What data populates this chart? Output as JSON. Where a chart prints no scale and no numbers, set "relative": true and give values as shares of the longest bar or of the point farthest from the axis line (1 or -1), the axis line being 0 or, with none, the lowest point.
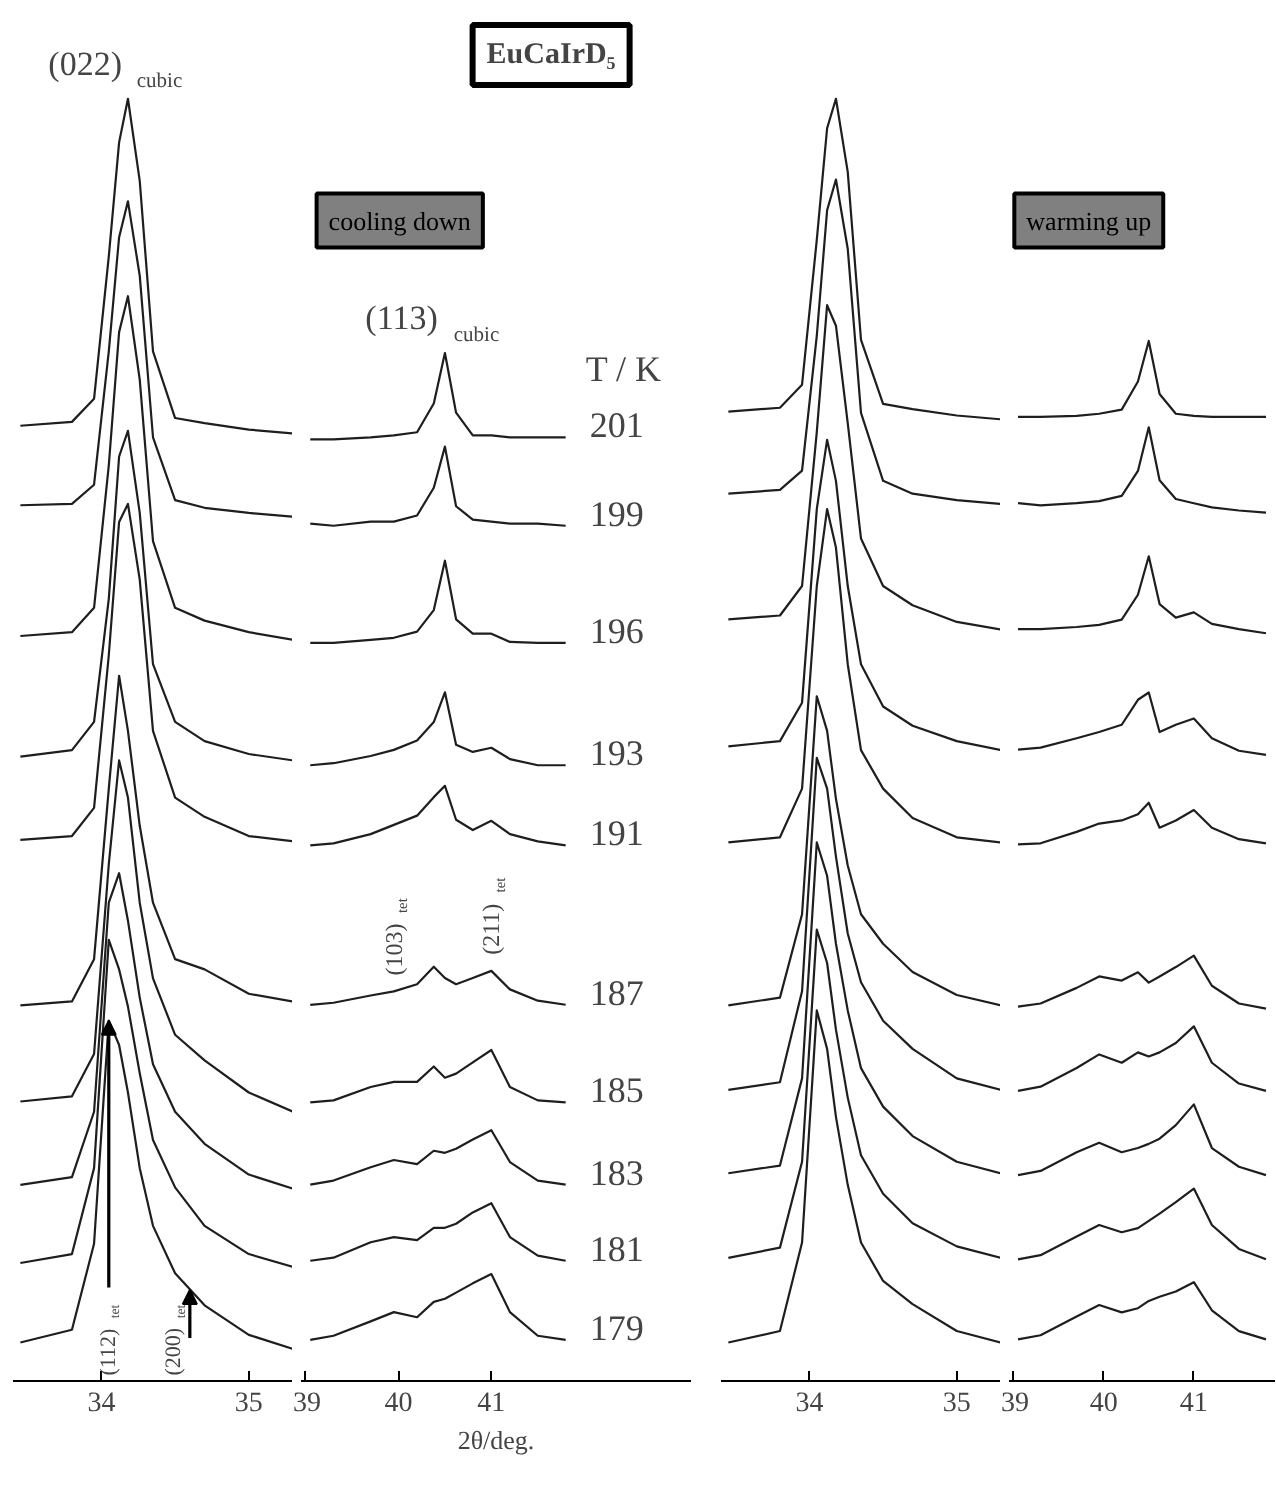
{
  "chart_data": [
    {
      "type": "line",
      "relative": true,
      "tick_labels": "x",
      "xlim": [
        33.4,
        35.3
      ],
      "xticks": [
        34,
        35
      ],
      "x": [
        33.45,
        33.8,
        33.95,
        34.05,
        34.12,
        34.18,
        34.26,
        34.35,
        34.5,
        34.7,
        35.0,
        35.3
      ],
      "annotations": [
        {
          "text": "(022)$_{cubic}$",
          "x": 34.18,
          "y": 1
        },
        {
          "text": "(112)$_{tet}$",
          "x": 34.05,
          "y": 0.281
        },
        {
          "text": "(200)$_{tet}$",
          "x": 34.6,
          "y": 0.071
        }
      ],
      "series": [
        {
          "color": "#1e1e1e",
          "values": [
            0.745,
            0.748,
            0.766,
            0.877,
            0.966,
            1,
            0.936,
            0.803,
            0.751,
            0.747,
            0.742,
            0.739
          ]
        },
        {
          "color": "#1e1e1e",
          "values": [
            0.683,
            0.684,
            0.699,
            0.803,
            0.892,
            0.92,
            0.862,
            0.736,
            0.687,
            0.681,
            0.677,
            0.674
          ]
        },
        {
          "color": "#1e1e1e",
          "values": [
            0.581,
            0.584,
            0.603,
            0.714,
            0.818,
            0.846,
            0.781,
            0.655,
            0.603,
            0.593,
            0.584,
            0.578
          ]
        },
        {
          "color": "#1e1e1e",
          "values": [
            0.487,
            0.492,
            0.514,
            0.61,
            0.721,
            0.741,
            0.677,
            0.559,
            0.514,
            0.499,
            0.489,
            0.484
          ]
        },
        {
          "color": "#1e1e1e",
          "values": [
            0.422,
            0.425,
            0.447,
            0.566,
            0.67,
            0.684,
            0.625,
            0.507,
            0.455,
            0.44,
            0.425,
            0.421
          ]
        },
        {
          "color": "#1e1e1e",
          "values": [
            0.293,
            0.296,
            0.329,
            0.462,
            0.55,
            0.507,
            0.433,
            0.373,
            0.329,
            0.321,
            0.302,
            0.296
          ]
        },
        {
          "color": "#1e1e1e",
          "values": [
            0.218,
            0.222,
            0.255,
            0.403,
            0.484,
            0.455,
            0.373,
            0.314,
            0.27,
            0.25,
            0.225,
            0.21
          ]
        },
        {
          "color": "#1e1e1e",
          "values": [
            0.153,
            0.159,
            0.21,
            0.373,
            0.396,
            0.359,
            0.299,
            0.247,
            0.21,
            0.185,
            0.161,
            0.15
          ]
        },
        {
          "color": "#1e1e1e",
          "values": [
            0.092,
            0.099,
            0.166,
            0.344,
            0.321,
            0.292,
            0.24,
            0.188,
            0.151,
            0.121,
            0.099,
            0.089
          ]
        },
        {
          "color": "#1e1e1e",
          "values": [
            0.03,
            0.04,
            0.107,
            0.281,
            0.262,
            0.225,
            0.166,
            0.121,
            0.084,
            0.059,
            0.036,
            0.025
          ]
        }
      ]
    },
    {
      "type": "line",
      "relative": true,
      "title": "EuCaIrD₅",
      "tick_labels": "x",
      "xlabel": "2θ/deg.",
      "legend_title": "T / K",
      "xlim": [
        38.95,
        43.15
      ],
      "xticks": [
        39,
        40,
        41
      ],
      "x": [
        39.05,
        39.3,
        39.7,
        39.95,
        40.2,
        40.38,
        40.5,
        40.62,
        40.8,
        41.0,
        41.2,
        41.5,
        41.8
      ],
      "annotations": [
        "cooling down",
        {
          "text": "(113)$_{cubic}$",
          "x": 40.5,
          "y": 1
        },
        {
          "text": "(103)$_{tet}$",
          "x": 39.95,
          "y": 0.379
        },
        {
          "text": "(211)$_{tet}$",
          "x": 41.0,
          "y": 0.399
        }
      ],
      "series": [
        {
          "name": "201",
          "color": "#1e1e1e",
          "values": [
            0.916,
            0.916,
            0.918,
            0.92,
            0.923,
            0.951,
            1,
            0.942,
            0.92,
            0.92,
            0.918,
            0.918,
            0.918
          ]
        },
        {
          "name": "199",
          "color": "#1e1e1e",
          "values": [
            0.834,
            0.832,
            0.836,
            0.836,
            0.842,
            0.869,
            0.909,
            0.851,
            0.838,
            0.836,
            0.834,
            0.834,
            0.832
          ]
        },
        {
          "name": "196",
          "color": "#1e1e1e",
          "values": [
            0.718,
            0.718,
            0.721,
            0.723,
            0.729,
            0.75,
            0.798,
            0.741,
            0.727,
            0.727,
            0.719,
            0.718,
            0.718
          ]
        },
        {
          "name": "193",
          "color": "#1e1e1e",
          "values": [
            0.599,
            0.601,
            0.608,
            0.614,
            0.623,
            0.641,
            0.67,
            0.619,
            0.612,
            0.616,
            0.605,
            0.599,
            0.599
          ]
        },
        {
          "name": "191",
          "color": "#1e1e1e",
          "values": [
            0.521,
            0.523,
            0.532,
            0.541,
            0.55,
            0.568,
            0.579,
            0.546,
            0.536,
            0.545,
            0.532,
            0.525,
            0.521
          ]
        },
        {
          "name": "187",
          "color": "#1e1e1e",
          "values": [
            0.366,
            0.368,
            0.375,
            0.379,
            0.386,
            0.403,
            0.392,
            0.386,
            0.392,
            0.399,
            0.381,
            0.37,
            0.366
          ]
        },
        {
          "name": "185",
          "color": "#1e1e1e",
          "values": [
            0.271,
            0.273,
            0.286,
            0.291,
            0.291,
            0.306,
            0.295,
            0.299,
            0.31,
            0.322,
            0.286,
            0.273,
            0.271
          ]
        },
        {
          "name": "183",
          "color": "#1e1e1e",
          "values": [
            0.191,
            0.195,
            0.208,
            0.215,
            0.211,
            0.224,
            0.222,
            0.226,
            0.235,
            0.244,
            0.213,
            0.195,
            0.191
          ]
        },
        {
          "name": "181",
          "color": "#1e1e1e",
          "values": [
            0.117,
            0.12,
            0.135,
            0.14,
            0.137,
            0.149,
            0.149,
            0.153,
            0.164,
            0.173,
            0.14,
            0.122,
            0.117
          ]
        },
        {
          "name": "179",
          "color": "#1e1e1e",
          "values": [
            0.04,
            0.044,
            0.058,
            0.067,
            0.062,
            0.077,
            0.08,
            0.086,
            0.095,
            0.104,
            0.067,
            0.044,
            0.04
          ]
        }
      ]
    },
    {
      "type": "line",
      "relative": true,
      "tick_labels": "x",
      "xlim": [
        33.4,
        35.3
      ],
      "xticks": [
        34,
        35
      ],
      "x": [
        33.45,
        33.8,
        33.95,
        34.05,
        34.12,
        34.18,
        34.26,
        34.35,
        34.5,
        34.7,
        35.0,
        35.3
      ],
      "series": [
        {
          "color": "#1e1e1e",
          "values": [
            0.756,
            0.759,
            0.777,
            0.89,
            0.977,
            1,
            0.943,
            0.812,
            0.762,
            0.758,
            0.753,
            0.75
          ]
        },
        {
          "color": "#1e1e1e",
          "values": [
            0.692,
            0.695,
            0.71,
            0.815,
            0.913,
            0.937,
            0.883,
            0.755,
            0.702,
            0.692,
            0.687,
            0.684
          ]
        },
        {
          "color": "#1e1e1e",
          "values": [
            0.594,
            0.597,
            0.62,
            0.74,
            0.839,
            0.823,
            0.747,
            0.657,
            0.62,
            0.605,
            0.592,
            0.586
          ]
        },
        {
          "color": "#1e1e1e",
          "values": [
            0.495,
            0.499,
            0.529,
            0.68,
            0.734,
            0.702,
            0.62,
            0.559,
            0.526,
            0.511,
            0.499,
            0.492
          ]
        },
        {
          "color": "#1e1e1e",
          "values": [
            0.42,
            0.424,
            0.462,
            0.62,
            0.68,
            0.65,
            0.559,
            0.492,
            0.462,
            0.439,
            0.424,
            0.42
          ]
        },
        {
          "color": "#1e1e1e",
          "values": [
            0.293,
            0.299,
            0.364,
            0.534,
            0.507,
            0.454,
            0.402,
            0.364,
            0.341,
            0.319,
            0.301,
            0.293
          ]
        },
        {
          "color": "#1e1e1e",
          "values": [
            0.227,
            0.233,
            0.304,
            0.486,
            0.462,
            0.409,
            0.349,
            0.311,
            0.281,
            0.259,
            0.236,
            0.227
          ]
        },
        {
          "color": "#1e1e1e",
          "values": [
            0.162,
            0.168,
            0.236,
            0.42,
            0.394,
            0.341,
            0.289,
            0.244,
            0.214,
            0.191,
            0.171,
            0.162
          ]
        },
        {
          "color": "#1e1e1e",
          "values": [
            0.096,
            0.104,
            0.171,
            0.352,
            0.326,
            0.274,
            0.221,
            0.176,
            0.146,
            0.123,
            0.105,
            0.096
          ]
        },
        {
          "color": "#1e1e1e",
          "values": [
            0.03,
            0.039,
            0.108,
            0.289,
            0.259,
            0.206,
            0.153,
            0.108,
            0.078,
            0.06,
            0.039,
            0.03
          ]
        }
      ]
    },
    {
      "type": "line",
      "relative": true,
      "tick_labels": "x",
      "xlim": [
        38.95,
        41.9
      ],
      "xticks": [
        39,
        40,
        41
      ],
      "x": [
        39.05,
        39.3,
        39.7,
        39.95,
        40.2,
        40.38,
        40.5,
        40.62,
        40.8,
        41.0,
        41.2,
        41.5,
        41.8
      ],
      "annotations": [
        "warming up"
      ],
      "series": [
        {
          "color": "#1e1e1e",
          "values": [
            0.927,
            0.927,
            0.928,
            0.93,
            0.934,
            0.961,
            1,
            0.949,
            0.93,
            0.928,
            0.927,
            0.927,
            0.927
          ]
        },
        {
          "color": "#1e1e1e",
          "values": [
            0.844,
            0.842,
            0.844,
            0.846,
            0.851,
            0.875,
            0.917,
            0.866,
            0.848,
            0.844,
            0.84,
            0.837,
            0.835
          ]
        },
        {
          "color": "#1e1e1e",
          "values": [
            0.723,
            0.723,
            0.725,
            0.727,
            0.732,
            0.756,
            0.793,
            0.747,
            0.734,
            0.739,
            0.728,
            0.723,
            0.719
          ]
        },
        {
          "color": "#1e1e1e",
          "values": [
            0.607,
            0.609,
            0.618,
            0.624,
            0.631,
            0.655,
            0.662,
            0.624,
            0.631,
            0.637,
            0.618,
            0.606,
            0.602
          ]
        },
        {
          "color": "#1e1e1e",
          "values": [
            0.516,
            0.517,
            0.528,
            0.536,
            0.539,
            0.545,
            0.556,
            0.532,
            0.539,
            0.549,
            0.532,
            0.521,
            0.517
          ]
        },
        {
          "color": "#1e1e1e",
          "values": [
            0.36,
            0.363,
            0.378,
            0.389,
            0.385,
            0.393,
            0.383,
            0.389,
            0.398,
            0.409,
            0.38,
            0.363,
            0.358
          ]
        },
        {
          "color": "#1e1e1e",
          "values": [
            0.279,
            0.283,
            0.301,
            0.314,
            0.306,
            0.316,
            0.312,
            0.316,
            0.325,
            0.341,
            0.306,
            0.286,
            0.279
          ]
        },
        {
          "color": "#1e1e1e",
          "values": [
            0.198,
            0.202,
            0.22,
            0.229,
            0.22,
            0.224,
            0.228,
            0.233,
            0.246,
            0.266,
            0.224,
            0.206,
            0.198
          ]
        },
        {
          "color": "#1e1e1e",
          "values": [
            0.117,
            0.121,
            0.139,
            0.15,
            0.143,
            0.147,
            0.154,
            0.161,
            0.172,
            0.185,
            0.15,
            0.127,
            0.117
          ]
        },
        {
          "color": "#1e1e1e",
          "values": [
            0.04,
            0.044,
            0.062,
            0.073,
            0.066,
            0.07,
            0.077,
            0.081,
            0.086,
            0.095,
            0.068,
            0.048,
            0.04
          ]
        }
      ]
    }
  ]
}
